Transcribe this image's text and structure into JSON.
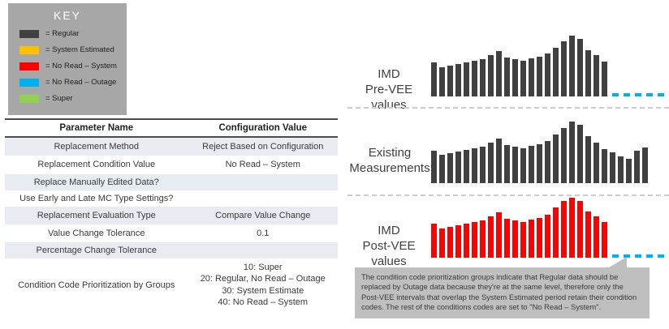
{
  "key": {
    "title": "KEY",
    "items": [
      {
        "label": "= Regular",
        "color": "#404040"
      },
      {
        "label": "= System Estimated",
        "color": "#FFC000"
      },
      {
        "label": "= No Read – System",
        "color": "#FF0000"
      },
      {
        "label": "= No Read – Outage",
        "color": "#00B0F0"
      },
      {
        "label": "= Super",
        "color": "#92D050"
      }
    ]
  },
  "table": {
    "headers": [
      "Parameter Name",
      "Configuration Value"
    ],
    "rows": [
      {
        "name": "Replacement Method",
        "value": "Reject Based on Configuration"
      },
      {
        "name": "Replacement Condition Value",
        "value": "No Read – System"
      },
      {
        "name": "Replace Manually Edited Data?",
        "value": ""
      },
      {
        "name": "Use Early and Late MC Type Settings?",
        "value": ""
      },
      {
        "name": "Replacement Evaluation Type",
        "value": "Compare Value Change"
      },
      {
        "name": "Value Change Tolerance",
        "value": "0.1"
      },
      {
        "name": "Percentage Change Tolerance",
        "value": ""
      },
      {
        "name": "Condition Code Prioritization by Groups",
        "value": "10: Super\n20: Regular, No Read – Outage\n30: System Estimate\n40: No Read – System"
      }
    ]
  },
  "chart_data": [
    {
      "type": "bar",
      "title": "IMD\nPre-VEE values",
      "values": [
        42,
        36,
        38,
        40,
        42,
        44,
        46,
        51,
        56,
        48,
        46,
        44,
        47,
        49,
        53,
        60,
        68,
        75,
        71,
        57,
        51,
        43
      ],
      "bar_color": "#404040",
      "dash_color": "#00B0F0",
      "dashed_tail_segments": 5,
      "dashed_tail_meaning": "No Read – Outage",
      "xlabel": "",
      "ylabel": "",
      "grid": false,
      "legend": false
    },
    {
      "type": "bar",
      "title": "Existing\nMeasurements",
      "values": [
        40,
        35,
        37,
        39,
        41,
        43,
        45,
        50,
        55,
        47,
        45,
        43,
        46,
        48,
        52,
        60,
        68,
        76,
        72,
        58,
        50,
        42,
        38,
        33,
        30,
        40,
        44
      ],
      "bar_color": "#404040",
      "dash_color": "#00B0F0",
      "dashed_tail_segments": 0,
      "xlabel": "",
      "ylabel": "",
      "grid": false,
      "legend": false
    },
    {
      "type": "bar",
      "title": "IMD\nPost-VEE values",
      "values": [
        42,
        36,
        38,
        40,
        42,
        44,
        46,
        51,
        56,
        48,
        46,
        44,
        47,
        49,
        53,
        62,
        70,
        74,
        70,
        57,
        51,
        44
      ],
      "bar_color": "#FF0000",
      "dash_color": "#00B0F0",
      "dashed_tail_segments": 5,
      "dashed_tail_meaning": "No Read – Outage",
      "xlabel": "",
      "ylabel": "",
      "grid": false,
      "legend": false
    }
  ],
  "callout": {
    "text": "The condition code prioritization groups indicate that Regular data should be replaced by Outage data because they're at the same level, therefore only the Post-VEE intervals that overlap the System Estimated period retain their condition codes.  The rest of the conditions codes are set to \"No Read – System\"."
  }
}
